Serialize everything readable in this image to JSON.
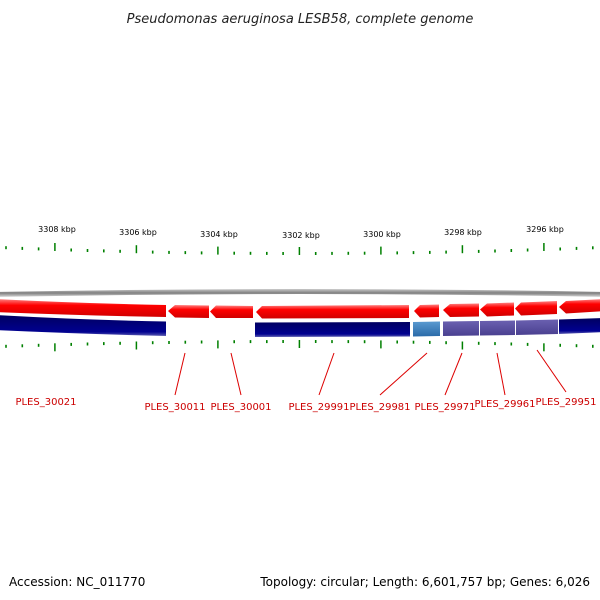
{
  "title": "Pseudomonas aeruginosa LESB58, complete genome",
  "scale_labels": [
    "3308 kbp",
    "3306 kbp",
    "3304 kbp",
    "3302 kbp",
    "3300 kbp",
    "3298 kbp",
    "3296 kbp"
  ],
  "genes": [
    {
      "label": "PLES_30021"
    },
    {
      "label": "PLES_30011"
    },
    {
      "label": "PLES_30001"
    },
    {
      "label": "PLES_29991"
    },
    {
      "label": "PLES_29981"
    },
    {
      "label": "PLES_29971"
    },
    {
      "label": "PLES_29961"
    },
    {
      "label": "PLES_29951"
    }
  ],
  "footer": {
    "accession": "Accession: NC_011770",
    "stats": "Topology: circular; Length: 6,601,757 bp; Genes: 6,026"
  },
  "colors": {
    "forward_cds": "#ff0000",
    "reverse_track": "#000080",
    "highlight": "#3a7ab8",
    "secondary": "#5a4fa0",
    "backbone": "#808080",
    "ticks": "#008000",
    "labels": "#cc0000"
  }
}
